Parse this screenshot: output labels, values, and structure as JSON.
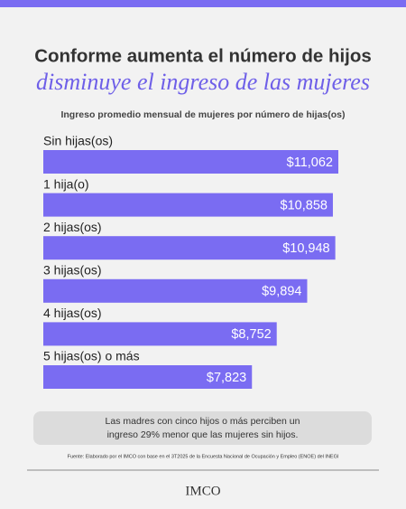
{
  "chart_data": {
    "type": "bar",
    "title": "Conforme aumenta el número de hijos",
    "subtitle": "disminuye el ingreso de las mujeres",
    "chart_title": "Ingreso promedio mensual de mujeres por número de hijas(os)",
    "categories": [
      "Sin hijas(os)",
      "1 hija(o)",
      "2 hijas(os)",
      "3 hijas(os)",
      "4 hijas(os)",
      "5 hijas(os) o más"
    ],
    "values": [
      11062,
      10858,
      10948,
      9894,
      8752,
      7823
    ],
    "value_labels": [
      "$11,062",
      "$10,858",
      "$10,948",
      "$9,894",
      "$8,752",
      "$7,823"
    ],
    "color": "#7a6cf2",
    "note": "Las madres con cinco hijos o más perciben un ingreso 29% menor que las mujeres sin hijos.",
    "source": "Fuente: Elaborado por el IMCO con base en el 3T2025 de la Encuesta Nacional de Ocupación y Empleo (ENOE) del INEGI",
    "logo": "IMCO"
  }
}
